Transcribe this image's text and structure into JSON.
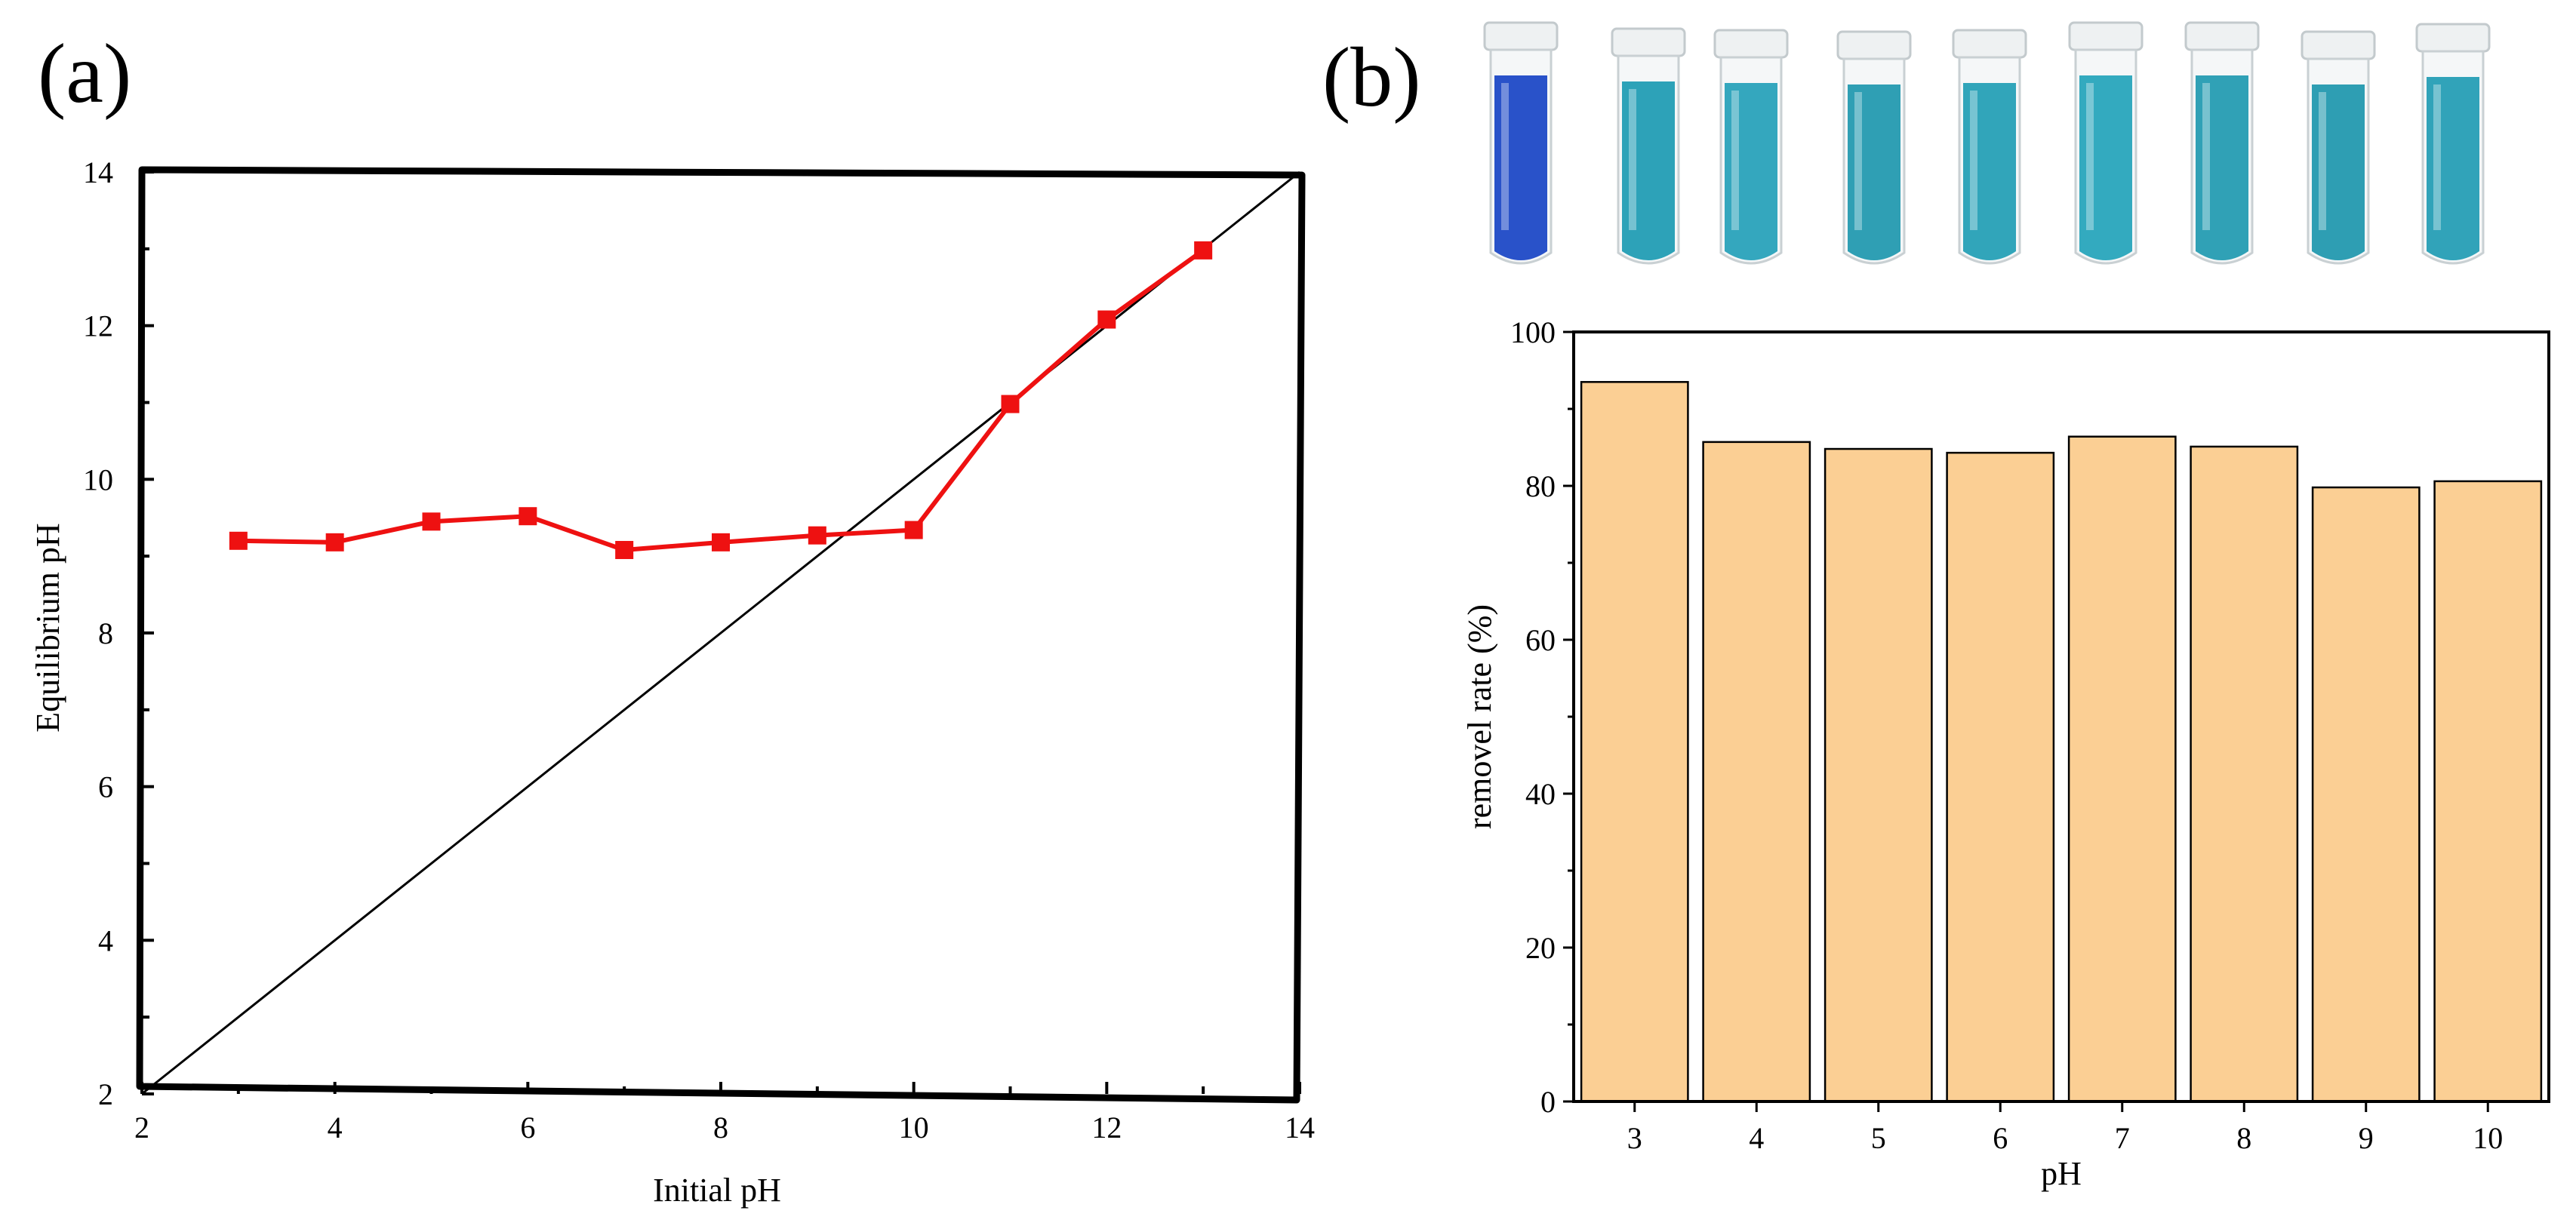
{
  "panels": {
    "a_label": "(a)",
    "b_label": "(b)"
  },
  "chart_data": [
    {
      "id": "a",
      "type": "line",
      "title": "",
      "xlabel": "Initial pH",
      "ylabel": "Equilibrium pH",
      "xlim": [
        2,
        14
      ],
      "ylim": [
        2,
        14
      ],
      "xticks": [
        "2",
        "4",
        "6",
        "8",
        "10",
        "12",
        "14"
      ],
      "yticks": [
        "2",
        "4",
        "6",
        "8",
        "10",
        "12",
        "14"
      ],
      "grid": false,
      "series": [
        {
          "name": "Equilibrium pH",
          "color": "#ee1111",
          "marker": "square",
          "x": [
            3,
            4,
            5,
            6,
            7,
            8,
            9,
            10,
            11,
            12,
            13
          ],
          "y": [
            9.2,
            9.18,
            9.45,
            9.52,
            9.08,
            9.18,
            9.27,
            9.34,
            10.98,
            12.08,
            12.98
          ]
        },
        {
          "name": "y = x reference",
          "color": "#000000",
          "x": [
            2,
            14
          ],
          "y": [
            2,
            14
          ]
        }
      ]
    },
    {
      "id": "b",
      "type": "bar",
      "title": "",
      "xlabel": "pH",
      "ylabel": "removel rate (%)",
      "categories": [
        "3",
        "4",
        "5",
        "6",
        "7",
        "8",
        "9",
        "10"
      ],
      "values": [
        93.5,
        85.7,
        84.8,
        84.3,
        86.4,
        85.1,
        79.8,
        80.6
      ],
      "ylim": [
        0,
        100
      ],
      "yticks": [
        "0",
        "20",
        "40",
        "60",
        "80",
        "100"
      ],
      "bar_color": "#fbcf94",
      "grid": false
    }
  ],
  "tubes": {
    "count": 9,
    "liquid_colors": [
      "#1743c4",
      "#1b9ab2",
      "#23a0b8",
      "#1d97ae",
      "#1f9db4",
      "#22a3ba",
      "#1e99b0",
      "#1c96ad",
      "#1f9bb3"
    ]
  }
}
